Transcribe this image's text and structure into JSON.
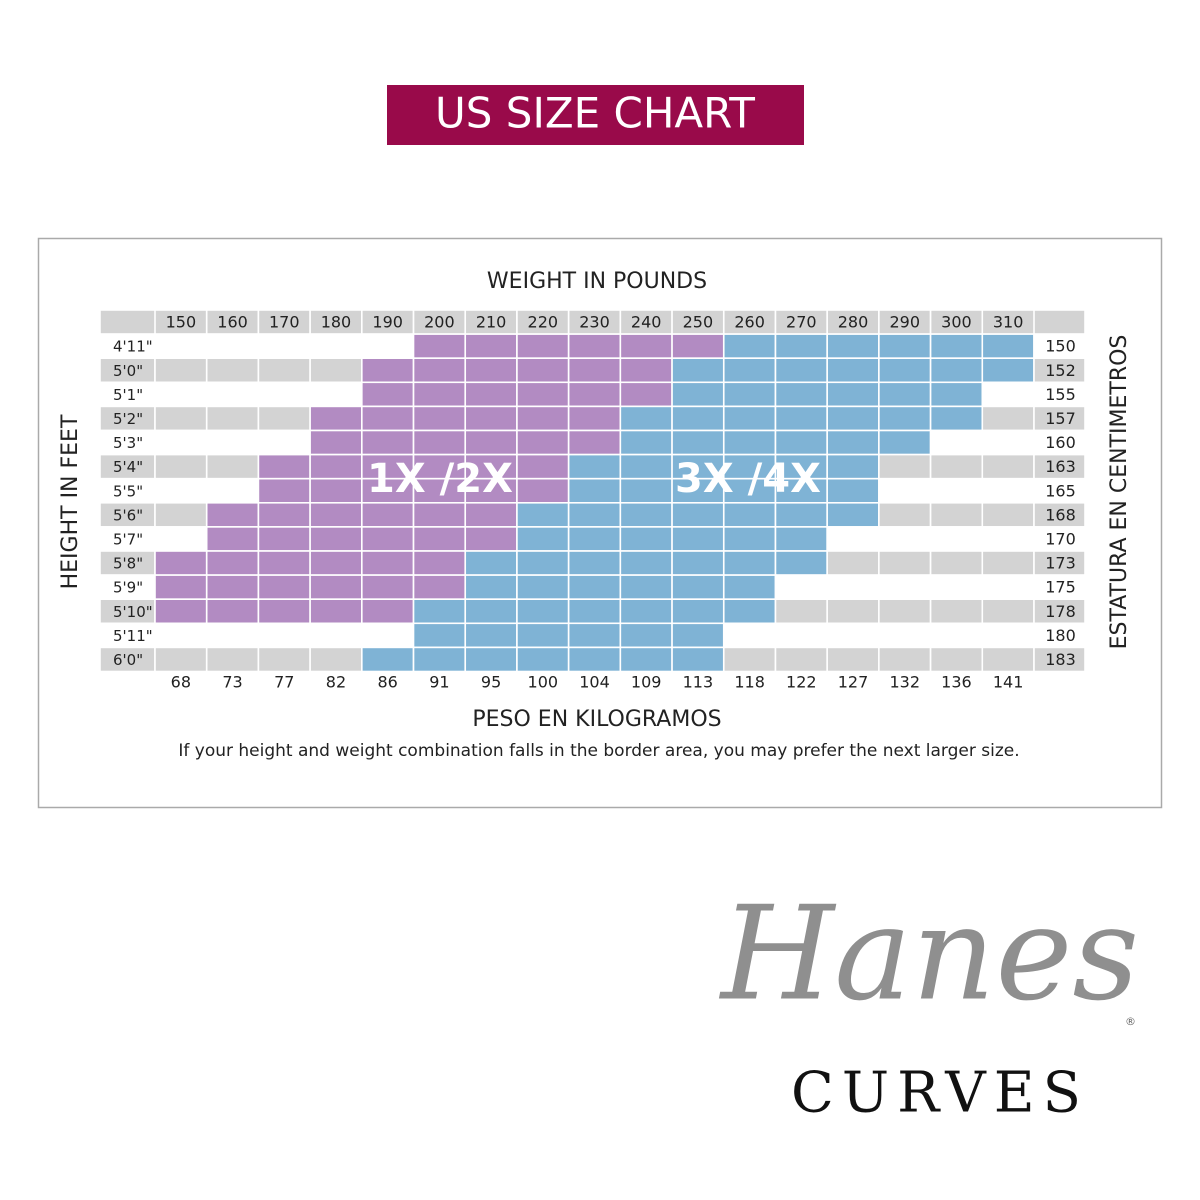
{
  "title": "US SIZE CHART",
  "chart": {
    "x_title": "WEIGHT IN POUNDS",
    "x2_title": "PESO EN KILOGRAMOS",
    "y_title": "HEIGHT IN FEET",
    "y2_title": "ESTATURA EN CENTIMETROS",
    "note": "If your height and weight combination falls in the border area, you may prefer the next larger size.",
    "pounds": [
      150,
      160,
      170,
      180,
      190,
      200,
      210,
      220,
      230,
      240,
      250,
      260,
      270,
      280,
      290,
      300,
      310
    ],
    "kilograms": [
      68,
      73,
      77,
      82,
      86,
      91,
      95,
      100,
      104,
      109,
      113,
      118,
      122,
      127,
      132,
      136,
      141
    ],
    "heights": [
      "4'11\"",
      "5'0\"",
      "5'1\"",
      "5'2\"",
      "5'3\"",
      "5'4\"",
      "5'5\"",
      "5'6\"",
      "5'7\"",
      "5'8\"",
      "5'9\"",
      "5'10\"",
      "5'11\"",
      "6'0\""
    ],
    "centimeters": [
      150,
      152,
      155,
      157,
      160,
      163,
      165,
      168,
      170,
      173,
      175,
      178,
      180,
      183
    ],
    "zones": [
      {
        "label": "1X /2X",
        "color": "#b28bc2"
      },
      {
        "label": "3X /4X",
        "color": "#7fb3d5"
      }
    ],
    "fit": [
      [
        null,
        null,
        null,
        null,
        null,
        "1X /2X",
        "1X /2X",
        "1X /2X",
        "1X /2X",
        "1X /2X",
        "1X /2X",
        "3X /4X",
        "3X /4X",
        "3X /4X",
        "3X /4X",
        "3X /4X",
        "3X /4X"
      ],
      [
        null,
        null,
        null,
        null,
        "1X /2X",
        "1X /2X",
        "1X /2X",
        "1X /2X",
        "1X /2X",
        "1X /2X",
        "3X /4X",
        "3X /4X",
        "3X /4X",
        "3X /4X",
        "3X /4X",
        "3X /4X",
        "3X /4X"
      ],
      [
        null,
        null,
        null,
        null,
        "1X /2X",
        "1X /2X",
        "1X /2X",
        "1X /2X",
        "1X /2X",
        "1X /2X",
        "3X /4X",
        "3X /4X",
        "3X /4X",
        "3X /4X",
        "3X /4X",
        "3X /4X",
        null
      ],
      [
        null,
        null,
        null,
        "1X /2X",
        "1X /2X",
        "1X /2X",
        "1X /2X",
        "1X /2X",
        "1X /2X",
        "3X /4X",
        "3X /4X",
        "3X /4X",
        "3X /4X",
        "3X /4X",
        "3X /4X",
        "3X /4X",
        null
      ],
      [
        null,
        null,
        null,
        "1X /2X",
        "1X /2X",
        "1X /2X",
        "1X /2X",
        "1X /2X",
        "1X /2X",
        "3X /4X",
        "3X /4X",
        "3X /4X",
        "3X /4X",
        "3X /4X",
        "3X /4X",
        null,
        null
      ],
      [
        null,
        null,
        "1X /2X",
        "1X /2X",
        "1X /2X",
        "1X /2X",
        "1X /2X",
        "1X /2X",
        "3X /4X",
        "3X /4X",
        "3X /4X",
        "3X /4X",
        "3X /4X",
        "3X /4X",
        null,
        null,
        null
      ],
      [
        null,
        null,
        "1X /2X",
        "1X /2X",
        "1X /2X",
        "1X /2X",
        "1X /2X",
        "1X /2X",
        "3X /4X",
        "3X /4X",
        "3X /4X",
        "3X /4X",
        "3X /4X",
        "3X /4X",
        null,
        null,
        null
      ],
      [
        null,
        "1X /2X",
        "1X /2X",
        "1X /2X",
        "1X /2X",
        "1X /2X",
        "1X /2X",
        "3X /4X",
        "3X /4X",
        "3X /4X",
        "3X /4X",
        "3X /4X",
        "3X /4X",
        "3X /4X",
        null,
        null,
        null
      ],
      [
        null,
        "1X /2X",
        "1X /2X",
        "1X /2X",
        "1X /2X",
        "1X /2X",
        "1X /2X",
        "3X /4X",
        "3X /4X",
        "3X /4X",
        "3X /4X",
        "3X /4X",
        "3X /4X",
        null,
        null,
        null,
        null
      ],
      [
        "1X /2X",
        "1X /2X",
        "1X /2X",
        "1X /2X",
        "1X /2X",
        "1X /2X",
        "3X /4X",
        "3X /4X",
        "3X /4X",
        "3X /4X",
        "3X /4X",
        "3X /4X",
        "3X /4X",
        null,
        null,
        null,
        null
      ],
      [
        "1X /2X",
        "1X /2X",
        "1X /2X",
        "1X /2X",
        "1X /2X",
        "1X /2X",
        "3X /4X",
        "3X /4X",
        "3X /4X",
        "3X /4X",
        "3X /4X",
        "3X /4X",
        null,
        null,
        null,
        null,
        null
      ],
      [
        "1X /2X",
        "1X /2X",
        "1X /2X",
        "1X /2X",
        "1X /2X",
        "3X /4X",
        "3X /4X",
        "3X /4X",
        "3X /4X",
        "3X /4X",
        "3X /4X",
        "3X /4X",
        null,
        null,
        null,
        null,
        null
      ],
      [
        null,
        null,
        null,
        null,
        null,
        "3X /4X",
        "3X /4X",
        "3X /4X",
        "3X /4X",
        "3X /4X",
        "3X /4X",
        null,
        null,
        null,
        null,
        null,
        null
      ],
      [
        null,
        null,
        null,
        null,
        "3X /4X",
        "3X /4X",
        "3X /4X",
        "3X /4X",
        "3X /4X",
        "3X /4X",
        "3X /4X",
        null,
        null,
        null,
        null,
        null,
        null
      ]
    ]
  },
  "logo": {
    "brand": "Hanes",
    "mark": "®",
    "line": "CURVES"
  }
}
